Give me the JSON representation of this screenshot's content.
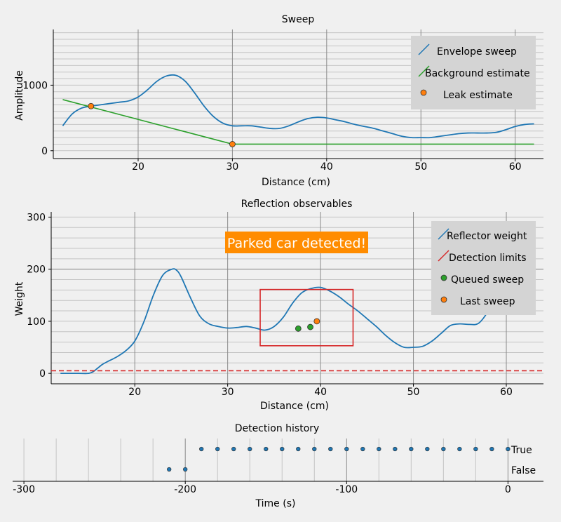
{
  "colors": {
    "background": "#f0f0f0",
    "legend_bg": "#d4d4d4",
    "sweep": "#1f77b4",
    "background_estimate": "#2ca02c",
    "leak": "#ff7f0e",
    "detection_limits": "#d62728",
    "queued": "#2ca02c",
    "last": "#ff7f0e",
    "banner_bg": "#ff8c00",
    "banner_text": "#ffffff"
  },
  "chart_data": [
    {
      "type": "line",
      "title": "Sweep",
      "xlabel": "Distance (cm)",
      "ylabel": "Amplitude",
      "xlim": [
        11,
        63
      ],
      "ylim": [
        -120,
        1850
      ],
      "x_ticks": [
        20,
        30,
        40,
        50,
        60
      ],
      "y_ticks": [
        0,
        1000
      ],
      "grid": "vertical at x ticks, horizontal minor every 100",
      "legend_position": "top-right",
      "series": [
        {
          "name": "Envelope sweep",
          "style": "line",
          "color": "#1f77b4",
          "x": [
            12,
            13,
            14,
            15,
            16,
            17,
            18,
            19,
            20,
            21,
            22,
            23,
            24,
            25,
            26,
            27,
            28,
            29,
            30,
            31,
            32,
            33,
            34,
            35,
            36,
            37,
            38,
            39,
            40,
            41,
            42,
            43,
            44,
            45,
            46,
            47,
            48,
            49,
            50,
            51,
            52,
            53,
            54,
            55,
            56,
            57,
            58,
            59,
            60,
            61,
            62
          ],
          "y": [
            380,
            560,
            650,
            680,
            700,
            720,
            740,
            760,
            820,
            930,
            1060,
            1140,
            1150,
            1060,
            880,
            680,
            520,
            420,
            380,
            380,
            380,
            360,
            340,
            340,
            380,
            440,
            490,
            510,
            500,
            470,
            440,
            400,
            370,
            340,
            300,
            260,
            220,
            200,
            200,
            200,
            220,
            240,
            260,
            270,
            270,
            270,
            280,
            320,
            370,
            400,
            410
          ]
        },
        {
          "name": "Background estimate",
          "style": "line",
          "color": "#2ca02c",
          "x": [
            12,
            30,
            62
          ],
          "y": [
            780,
            100,
            100
          ]
        },
        {
          "name": "Leak estimate",
          "style": "markers",
          "color": "#ff7f0e",
          "x": [
            15,
            30
          ],
          "y": [
            680,
            100
          ]
        }
      ]
    },
    {
      "type": "line",
      "title": "Reflection observables",
      "xlabel": "Distance (cm)",
      "ylabel": "Weight",
      "xlim": [
        11,
        64
      ],
      "ylim": [
        -20,
        310
      ],
      "x_ticks": [
        20,
        30,
        40,
        50,
        60
      ],
      "y_ticks": [
        0,
        100,
        200,
        300
      ],
      "grid": "vertical at x ticks, horizontal minor every 20",
      "legend_position": "top-right",
      "annotation": "Parked car detected!",
      "series": [
        {
          "name": "Reflector weight",
          "style": "line",
          "color": "#1f77b4",
          "x": [
            12,
            13,
            14,
            15,
            15.5,
            16,
            16.5,
            17,
            18,
            19,
            20,
            21,
            22,
            23,
            24,
            24.5,
            25,
            26,
            27,
            28,
            29,
            30,
            31,
            32,
            33,
            34,
            35,
            36,
            37,
            38,
            39,
            40,
            41,
            42,
            43,
            44,
            45,
            46,
            47,
            48,
            49,
            50,
            51,
            52,
            53,
            54,
            55,
            56,
            57,
            58,
            59,
            60,
            61,
            62
          ],
          "y": [
            0,
            0,
            0,
            0,
            3,
            10,
            17,
            22,
            31,
            43,
            62,
            100,
            150,
            188,
            200,
            198,
            185,
            145,
            110,
            95,
            90,
            87,
            88,
            90,
            87,
            83,
            90,
            108,
            135,
            155,
            163,
            165,
            158,
            147,
            133,
            120,
            105,
            90,
            73,
            59,
            50,
            50,
            52,
            62,
            77,
            92,
            95,
            94,
            96,
            118,
            152,
            180,
            191,
            196
          ]
        },
        {
          "name": "Detection limits",
          "style": "dashed line + rectangle",
          "color": "#d62728",
          "threshold_y": 5,
          "box_x": [
            33.5,
            43.5
          ],
          "box_y": [
            53,
            161
          ]
        },
        {
          "name": "Queued sweep",
          "style": "markers",
          "color": "#2ca02c",
          "x": [
            37.6,
            38.9
          ],
          "y": [
            86,
            89
          ]
        },
        {
          "name": "Last sweep",
          "style": "markers",
          "color": "#ff7f0e",
          "x": [
            39.6
          ],
          "y": [
            100
          ]
        }
      ]
    },
    {
      "type": "scatter",
      "title": "Detection history",
      "xlabel": "Time (s)",
      "ylabel": "",
      "xlim": [
        -307,
        22
      ],
      "x_ticks": [
        -300,
        -200,
        -100,
        0
      ],
      "categories": [
        "False",
        "True"
      ],
      "grid": "vertical every 20",
      "series": [
        {
          "name": "",
          "style": "markers",
          "color": "#1f77b4",
          "x": [
            -210,
            -200,
            -190,
            -180,
            -170,
            -160,
            -150,
            -140,
            -130,
            -120,
            -110,
            -100,
            -90,
            -80,
            -70,
            -60,
            -50,
            -40,
            -30,
            -20,
            -10,
            0
          ],
          "y": [
            "False",
            "False",
            "True",
            "True",
            "True",
            "True",
            "True",
            "True",
            "True",
            "True",
            "True",
            "True",
            "True",
            "True",
            "True",
            "True",
            "True",
            "True",
            "True",
            "True",
            "True",
            "True"
          ]
        }
      ]
    }
  ]
}
